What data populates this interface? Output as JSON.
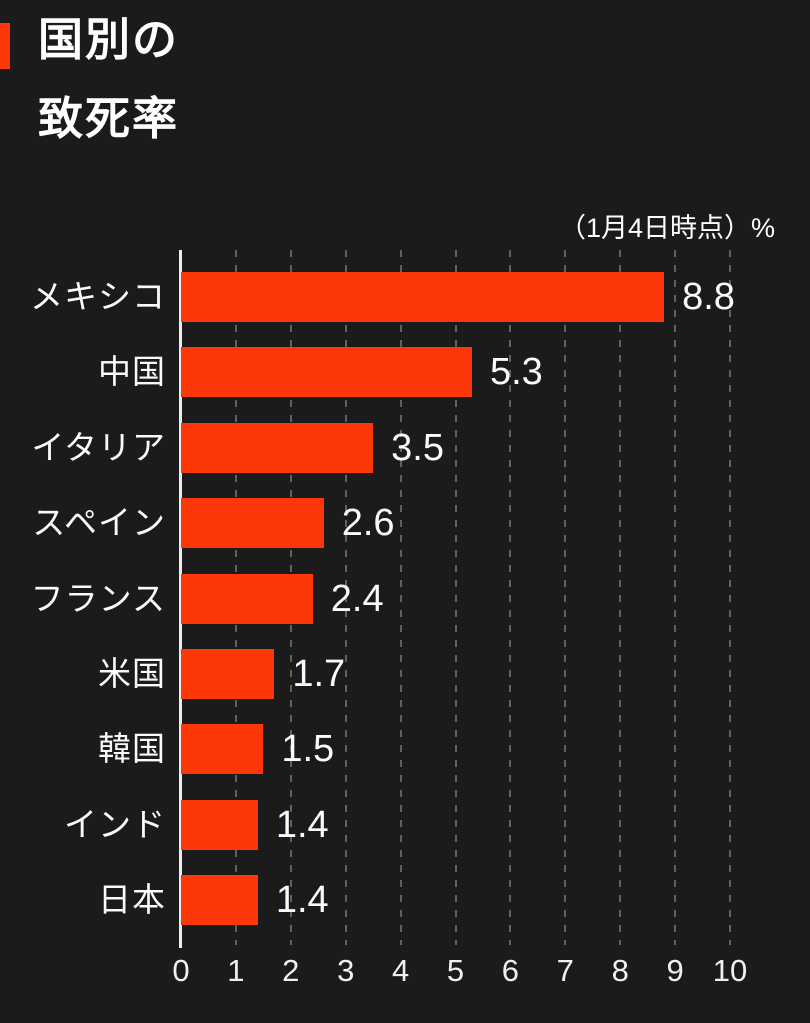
{
  "page": {
    "background": "#1b1b1b"
  },
  "header": {
    "title": "国別の致死率",
    "title_lines": [
      "国別の",
      "致死率"
    ]
  },
  "chart_data": {
    "type": "bar",
    "orientation": "horizontal",
    "title": "国別の致死率",
    "annotation": "（1月4日時点）%",
    "categories": [
      "メキシコ",
      "中国",
      "イタリア",
      "スペイン",
      "フランス",
      "米国",
      "韓国",
      "インド",
      "日本"
    ],
    "values": [
      8.8,
      5.3,
      3.5,
      2.6,
      2.4,
      1.7,
      1.5,
      1.4,
      1.4
    ],
    "value_labels": [
      "8.8",
      "5.3",
      "3.5",
      "2.6",
      "2.4",
      "1.7",
      "1.5",
      "1.4",
      "1.4"
    ],
    "x_ticks": [
      0,
      1,
      2,
      3,
      4,
      5,
      6,
      7,
      8,
      9,
      10
    ],
    "xlim": [
      0,
      10
    ],
    "xlabel": "",
    "ylabel": "",
    "grid": "vertical-dashed",
    "legend": "none"
  },
  "colors": {
    "background": "#1b1b1b",
    "bar": "#fc3808",
    "title_marker": "#fc3808",
    "text": "#ffffff",
    "gridline": "#616161",
    "axis": "#ededed"
  }
}
